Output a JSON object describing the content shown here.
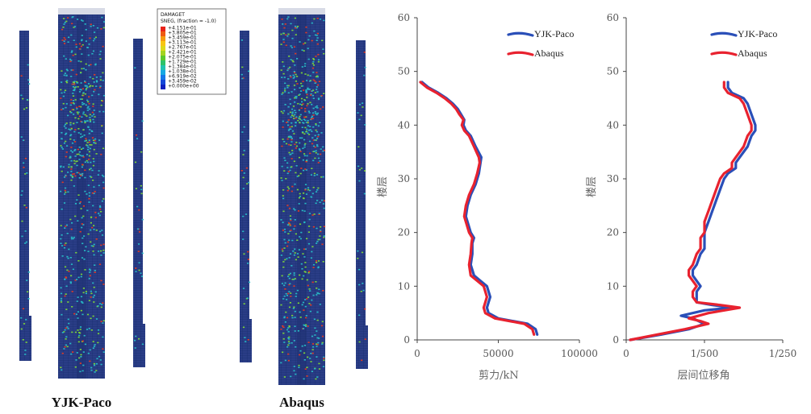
{
  "left_panel": {
    "captions": [
      "YJK-Paco",
      "Abaqus"
    ],
    "legend": {
      "title_lines": [
        "DAMAGET",
        "SNEG, (fraction = -1.0)"
      ],
      "values": [
        "+4.151e-01",
        "+3.805e-01",
        "+3.459e-01",
        "+3.113e-01",
        "+2.767e-01",
        "+2.421e-01",
        "+2.075e-01",
        "+1.729e-01",
        "+1.384e-01",
        "+1.038e-01",
        "+6.919e-02",
        "+3.459e-02",
        "+0.000e+00"
      ],
      "colors": [
        "#e8231a",
        "#ef5a12",
        "#f59a10",
        "#f8c513",
        "#ddd81a",
        "#a3d31f",
        "#5cc82c",
        "#2cc269",
        "#1fc2b0",
        "#16a8e3",
        "#1477e8",
        "#1446d8",
        "#0f1fbf"
      ]
    },
    "model_colors": {
      "base": "#2a3d86",
      "grid": "#142a6b",
      "damage_low": "#27b7c4",
      "damage_mid": "#7ad23a",
      "damage_high": "#e13a23"
    }
  },
  "chart_data": [
    {
      "type": "line",
      "xlabel": "剪力/kN",
      "ylabel": "楼层",
      "xlim": [
        0,
        100000
      ],
      "ylim": [
        0,
        60
      ],
      "x_ticks": [
        0,
        50000,
        100000
      ],
      "x_tick_labels": [
        "0",
        "50000",
        "100000"
      ],
      "y_ticks": [
        0,
        10,
        20,
        30,
        40,
        50,
        60
      ],
      "y_tick_labels": [
        "0",
        "10",
        "20",
        "30",
        "40",
        "50",
        "60"
      ],
      "legend_position": "top-right",
      "series": [
        {
          "name": "YJK-Paco",
          "color": "#2a4fb8",
          "points": [
            [
              74000,
              1
            ],
            [
              73000,
              2
            ],
            [
              68000,
              3
            ],
            [
              50000,
              4
            ],
            [
              44000,
              5
            ],
            [
              43000,
              6
            ],
            [
              44000,
              7
            ],
            [
              45000,
              8
            ],
            [
              43000,
              10
            ],
            [
              39000,
              11
            ],
            [
              35000,
              12
            ],
            [
              33000,
              14
            ],
            [
              34000,
              16
            ],
            [
              34000,
              18
            ],
            [
              35000,
              19
            ],
            [
              33000,
              20
            ],
            [
              31000,
              22
            ],
            [
              30000,
              23
            ],
            [
              31000,
              25
            ],
            [
              33000,
              27
            ],
            [
              36000,
              29
            ],
            [
              38000,
              31
            ],
            [
              39000,
              33
            ],
            [
              39500,
              34
            ],
            [
              36000,
              36
            ],
            [
              33000,
              38
            ],
            [
              30000,
              39
            ],
            [
              28500,
              40
            ],
            [
              29000,
              41
            ],
            [
              27000,
              42
            ],
            [
              25000,
              43
            ],
            [
              22000,
              44
            ],
            [
              18000,
              45
            ],
            [
              13000,
              46
            ],
            [
              7000,
              47
            ],
            [
              3000,
              48
            ]
          ]
        },
        {
          "name": "Abaqus",
          "color": "#e8222f",
          "points": [
            [
              72000,
              1
            ],
            [
              71000,
              2
            ],
            [
              66000,
              3
            ],
            [
              48000,
              4
            ],
            [
              42000,
              5
            ],
            [
              41000,
              6
            ],
            [
              42000,
              7
            ],
            [
              43000,
              8
            ],
            [
              41000,
              10
            ],
            [
              37000,
              11
            ],
            [
              33000,
              12
            ],
            [
              32000,
              14
            ],
            [
              33000,
              16
            ],
            [
              33500,
              18
            ],
            [
              34000,
              19
            ],
            [
              32000,
              20
            ],
            [
              30000,
              22
            ],
            [
              29000,
              23
            ],
            [
              30000,
              25
            ],
            [
              32000,
              27
            ],
            [
              35000,
              29
            ],
            [
              37000,
              31
            ],
            [
              38500,
              33
            ],
            [
              38000,
              34
            ],
            [
              35000,
              36
            ],
            [
              32000,
              38
            ],
            [
              29000,
              39
            ],
            [
              27500,
              40
            ],
            [
              28500,
              41
            ],
            [
              26000,
              42
            ],
            [
              24000,
              43
            ],
            [
              21000,
              44
            ],
            [
              17000,
              45
            ],
            [
              12000,
              46
            ],
            [
              6000,
              47
            ],
            [
              2000,
              48
            ]
          ]
        }
      ]
    },
    {
      "type": "line",
      "xlabel": "层间位移角",
      "ylabel": "楼层",
      "x_quantity": "inverse_drift",
      "xlim": [
        0,
        0.004
      ],
      "ylim": [
        0,
        60
      ],
      "x_ticks": [
        0,
        0.002,
        0.004
      ],
      "x_tick_labels": [
        "0",
        "1/500",
        "1/250"
      ],
      "y_ticks": [
        0,
        10,
        20,
        30,
        40,
        50,
        60
      ],
      "y_tick_labels": [
        "0",
        "10",
        "20",
        "30",
        "40",
        "50",
        "60"
      ],
      "legend_position": "top-right",
      "series": [
        {
          "name": "YJK-Paco",
          "color": "#2a4fb8",
          "points": [
            [
              0.0001,
              0
            ],
            [
              0.0009,
              1
            ],
            [
              0.0016,
              2
            ],
            [
              0.002,
              3
            ],
            [
              0.0017,
              4
            ],
            [
              0.0014,
              4.5
            ],
            [
              0.002,
              5.5
            ],
            [
              0.0027,
              6
            ],
            [
              0.0022,
              6.5
            ],
            [
              0.0018,
              7
            ],
            [
              0.0018,
              8
            ],
            [
              0.0018,
              9
            ],
            [
              0.0019,
              10
            ],
            [
              0.0018,
              11
            ],
            [
              0.0017,
              12
            ],
            [
              0.0017,
              13
            ],
            [
              0.0018,
              14
            ],
            [
              0.0019,
              16
            ],
            [
              0.002,
              17
            ],
            [
              0.002,
              19
            ],
            [
              0.002,
              20
            ],
            [
              0.0021,
              22
            ],
            [
              0.0022,
              24
            ],
            [
              0.0023,
              26
            ],
            [
              0.0024,
              28
            ],
            [
              0.0025,
              30
            ],
            [
              0.0026,
              31
            ],
            [
              0.0028,
              32
            ],
            [
              0.0028,
              33
            ],
            [
              0.0029,
              34
            ],
            [
              0.0031,
              36
            ],
            [
              0.0032,
              38
            ],
            [
              0.0033,
              39
            ],
            [
              0.0033,
              40
            ],
            [
              0.0032,
              42
            ],
            [
              0.0031,
              44
            ],
            [
              0.003,
              45
            ],
            [
              0.0027,
              46
            ],
            [
              0.0026,
              47
            ],
            [
              0.0026,
              48
            ]
          ]
        },
        {
          "name": "Abaqus",
          "color": "#e8222f",
          "points": [
            [
              0.0001,
              0
            ],
            [
              0.0008,
              1
            ],
            [
              0.0015,
              2
            ],
            [
              0.0021,
              3
            ],
            [
              0.0019,
              3.5
            ],
            [
              0.0016,
              4
            ],
            [
              0.0021,
              5
            ],
            [
              0.0029,
              6
            ],
            [
              0.0024,
              6.5
            ],
            [
              0.0018,
              7
            ],
            [
              0.0017,
              8
            ],
            [
              0.0017,
              9
            ],
            [
              0.0018,
              10
            ],
            [
              0.0017,
              11
            ],
            [
              0.0016,
              12
            ],
            [
              0.0016,
              13
            ],
            [
              0.0017,
              14
            ],
            [
              0.0018,
              16
            ],
            [
              0.0019,
              17
            ],
            [
              0.0019,
              19
            ],
            [
              0.002,
              20
            ],
            [
              0.002,
              22
            ],
            [
              0.0021,
              24
            ],
            [
              0.0022,
              26
            ],
            [
              0.0023,
              28
            ],
            [
              0.0024,
              30
            ],
            [
              0.0025,
              31
            ],
            [
              0.0027,
              32
            ],
            [
              0.0027,
              33
            ],
            [
              0.0028,
              34
            ],
            [
              0.003,
              36
            ],
            [
              0.0031,
              38
            ],
            [
              0.0032,
              39
            ],
            [
              0.0032,
              40
            ],
            [
              0.0031,
              42
            ],
            [
              0.003,
              44
            ],
            [
              0.0029,
              45
            ],
            [
              0.0026,
              46
            ],
            [
              0.0025,
              47
            ],
            [
              0.0025,
              48
            ]
          ]
        }
      ]
    }
  ]
}
